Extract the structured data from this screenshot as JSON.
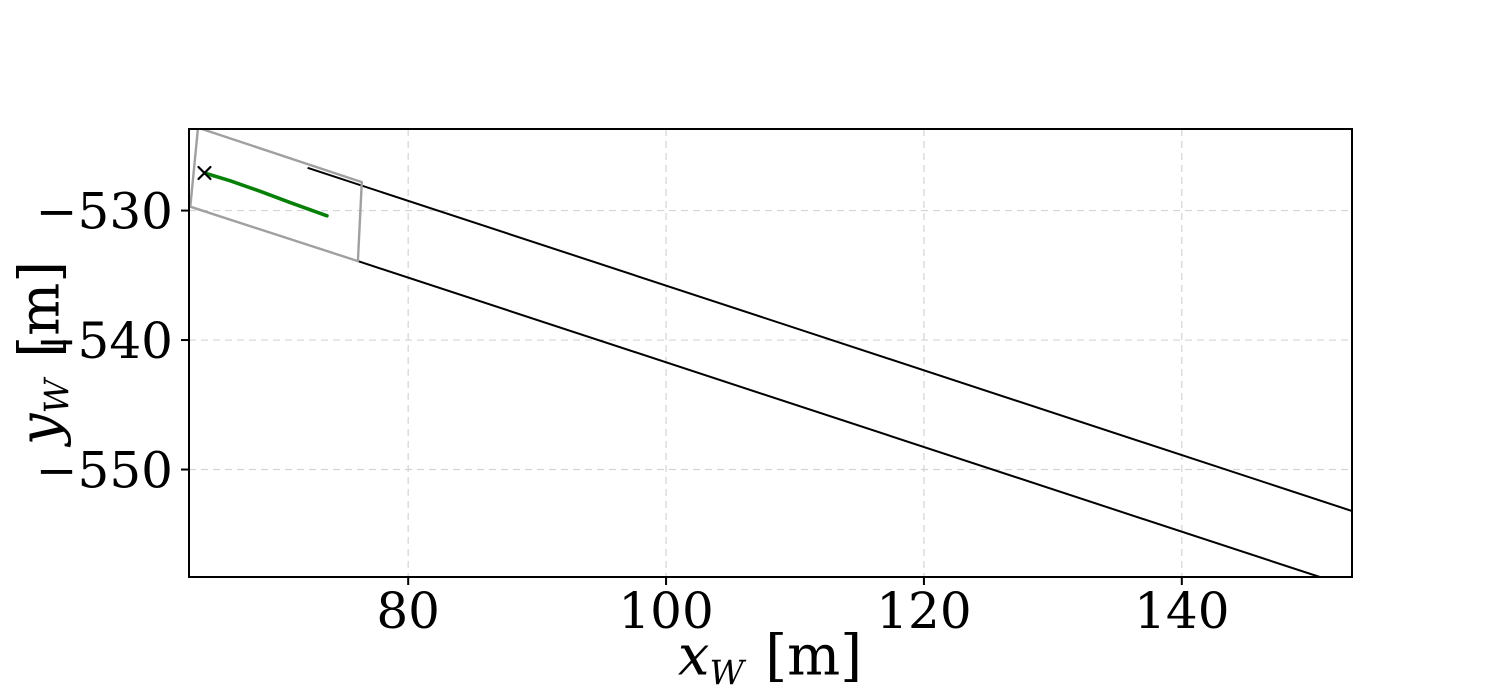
{
  "figure": {
    "background": "#ffffff",
    "spine_color": "#000000",
    "tick_color": "#000000"
  },
  "chart_data": {
    "type": "line",
    "title": "",
    "xlabel": {
      "var": "x",
      "sub": "W",
      "unit": "[m]"
    },
    "ylabel": {
      "var": "y",
      "sub": "W",
      "unit": "[m]"
    },
    "xlim": [
      63.0,
      153.2
    ],
    "ylim": [
      -558.3,
      -523.7
    ],
    "xticks": [
      80,
      100,
      120,
      140
    ],
    "yticks": [
      -530,
      -540,
      -550
    ],
    "grid": {
      "on": true,
      "style": "dashed",
      "color": "#d4d4d4",
      "dash": "7,5",
      "width": 1.2
    },
    "legend": null,
    "series": [
      {
        "name": "road-boundary-upper",
        "kind": "line",
        "color": "#000000",
        "width": 2,
        "points": [
          [
            72.2,
            -526.7
          ],
          [
            153.2,
            -553.2
          ]
        ]
      },
      {
        "name": "road-boundary-lower",
        "kind": "line",
        "color": "#000000",
        "width": 2,
        "points": [
          [
            76.1,
            -533.9
          ],
          [
            150.7,
            -558.3
          ]
        ]
      },
      {
        "name": "local-road-window",
        "kind": "polygon",
        "color": "#a0a0a0",
        "width": 2.4,
        "points": [
          [
            63.7,
            -523.6
          ],
          [
            76.4,
            -527.8
          ],
          [
            76.1,
            -533.9
          ],
          [
            63.1,
            -529.7
          ]
        ]
      },
      {
        "name": "planned-trajectory",
        "kind": "line",
        "color": "#078007",
        "width": 3.6,
        "linecap": "round",
        "start_marker": "x",
        "marker_color": "#000000",
        "points": [
          [
            64.2,
            -527.1
          ],
          [
            66.2,
            -527.7
          ],
          [
            68.5,
            -528.5
          ],
          [
            70.9,
            -529.4
          ],
          [
            73.7,
            -530.4
          ]
        ]
      }
    ]
  }
}
